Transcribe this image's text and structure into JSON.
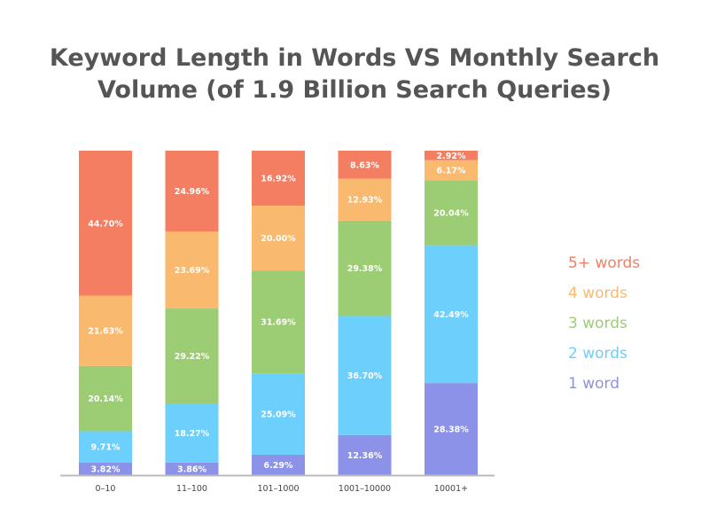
{
  "title": {
    "line1": "Keyword Length in Words VS Monthly Search",
    "line2": "Volume (of 1.9 Billion Search Queries)"
  },
  "chart_data": {
    "type": "bar",
    "stacked": true,
    "categories": [
      "0–10",
      "11–100",
      "101–1000",
      "1001–10000",
      "10001+"
    ],
    "series": [
      {
        "name": "1 word",
        "color": "#8c92e8",
        "values": [
          3.82,
          3.86,
          6.29,
          12.36,
          28.38
        ],
        "labels": [
          "3.82%",
          "3.86%",
          "6.29%",
          "12.36%",
          "28.38%"
        ]
      },
      {
        "name": "2 words",
        "color": "#6dcffb",
        "values": [
          9.71,
          18.27,
          25.09,
          36.7,
          42.49
        ],
        "labels": [
          "9.71%",
          "18.27%",
          "25.09%",
          "36.70%",
          "42.49%"
        ]
      },
      {
        "name": "3 words",
        "color": "#9ccc73",
        "values": [
          20.14,
          29.22,
          31.69,
          29.38,
          20.04
        ],
        "labels": [
          "20.14%",
          "29.22%",
          "31.69%",
          "29.38%",
          "20.04%"
        ]
      },
      {
        "name": "4 words",
        "color": "#f9ba6f",
        "values": [
          21.63,
          23.69,
          20.0,
          12.93,
          6.17
        ],
        "labels": [
          "21.63%",
          "23.69%",
          "20.00%",
          "12.93%",
          "6.17%"
        ]
      },
      {
        "name": "5+ words",
        "color": "#f47e62",
        "values": [
          44.7,
          24.96,
          16.92,
          8.63,
          2.92
        ],
        "labels": [
          "44.70%",
          "24.96%",
          "16.92%",
          "8.63%",
          "2.92%"
        ]
      }
    ],
    "legend_position": "right",
    "grid": false,
    "ylim": [
      0,
      100
    ]
  }
}
